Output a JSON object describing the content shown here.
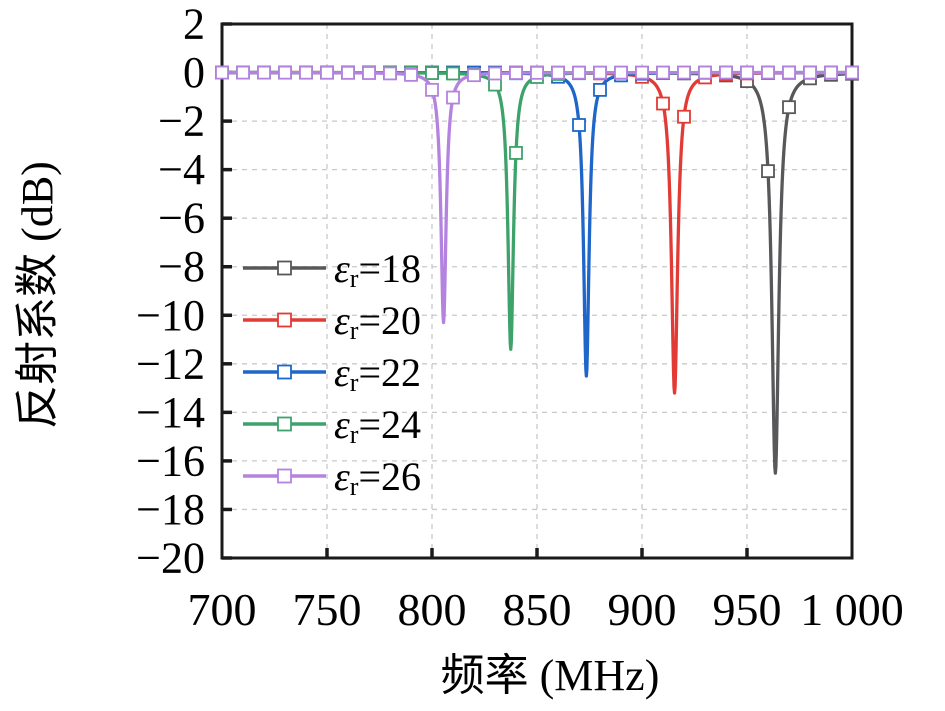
{
  "chart_data": {
    "type": "line",
    "title": "",
    "xlabel": "频率 (MHz)",
    "ylabel": "反射系数 (dB)",
    "xlim": [
      700,
      1000
    ],
    "ylim": [
      -20,
      2
    ],
    "grid": {
      "show": true,
      "style": "dashed",
      "color": "#c9c9c9"
    },
    "frame_color": "#1a1a1a",
    "background": "#ffffff",
    "legend": {
      "position": "inside-left",
      "frame": false
    },
    "marker": {
      "shape": "open-square",
      "fill": "#ffffff",
      "interval_mhz": 10
    },
    "x_ticks": [
      {
        "value": 700,
        "label": "700"
      },
      {
        "value": 750,
        "label": "750"
      },
      {
        "value": 800,
        "label": "800"
      },
      {
        "value": 850,
        "label": "850"
      },
      {
        "value": 900,
        "label": "900"
      },
      {
        "value": 950,
        "label": "950"
      },
      {
        "value": 1000,
        "label": "1 000"
      }
    ],
    "y_ticks": [
      {
        "value": 2,
        "label": "2"
      },
      {
        "value": 0,
        "label": "0"
      },
      {
        "value": -2,
        "label": "−2"
      },
      {
        "value": -4,
        "label": "−4"
      },
      {
        "value": -6,
        "label": "−6"
      },
      {
        "value": -8,
        "label": "−8"
      },
      {
        "value": -10,
        "label": "−10"
      },
      {
        "value": -12,
        "label": "−12"
      },
      {
        "value": -14,
        "label": "−14"
      },
      {
        "value": -16,
        "label": "−16"
      },
      {
        "value": -18,
        "label": "−18"
      },
      {
        "value": -20,
        "label": "−20"
      }
    ],
    "series": [
      {
        "id": "er-18",
        "label": "εr=18",
        "legend_label": {
          "symbol": "ε",
          "subscript": "r",
          "value": "=18"
        },
        "color": "#58585a",
        "baseline_db": 0,
        "resonance_mhz": 963.5,
        "min_db": -16.5,
        "width_mhz": 2.0
      },
      {
        "id": "er-20",
        "label": "εr=20",
        "legend_label": {
          "symbol": "ε",
          "subscript": "r",
          "value": "=20"
        },
        "color": "#e23b35",
        "baseline_db": 0,
        "resonance_mhz": 915.5,
        "min_db": -13.2,
        "width_mhz": 1.8
      },
      {
        "id": "er-22",
        "label": "εr=22",
        "legend_label": {
          "symbol": "ε",
          "subscript": "r",
          "value": "=22"
        },
        "color": "#1e66c9",
        "baseline_db": 0,
        "resonance_mhz": 873.5,
        "min_db": -12.5,
        "width_mhz": 1.6
      },
      {
        "id": "er-24",
        "label": "εr=24",
        "legend_label": {
          "symbol": "ε",
          "subscript": "r",
          "value": "=24"
        },
        "color": "#3ea26b",
        "baseline_db": 0,
        "resonance_mhz": 837.5,
        "min_db": -11.4,
        "width_mhz": 1.6
      },
      {
        "id": "er-26",
        "label": "εr=26",
        "legend_label": {
          "symbol": "ε",
          "subscript": "r",
          "value": "=26"
        },
        "color": "#b483df",
        "baseline_db": 0,
        "resonance_mhz": 805.5,
        "min_db": -10.3,
        "width_mhz": 1.5
      }
    ]
  }
}
